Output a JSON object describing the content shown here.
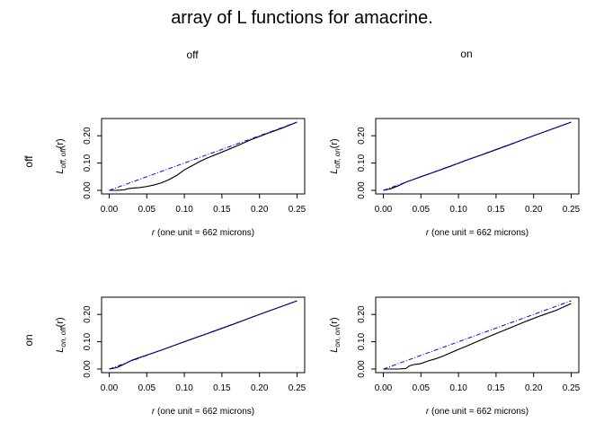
{
  "title": "array of L functions for amacrine.",
  "column_headers": [
    "off",
    "on"
  ],
  "row_headers": [
    "off",
    "on"
  ],
  "colors": {
    "observed": "#000000",
    "theoretical": "#0000ff",
    "envelope": "#ff0000",
    "frame": "#000000"
  },
  "chart_data": [
    {
      "type": "line",
      "panel": "off-off",
      "ylabel_symbol": "L",
      "ylabel_sub": "off, off",
      "ylabel_arg": "(r)",
      "xlabel_symbol": "r",
      "xlabel_rest": " (one unit = 662 microns)",
      "xlim": [
        0,
        0.25
      ],
      "ylim": [
        0,
        0.25
      ],
      "xticks": [
        "0.00",
        "0.05",
        "0.10",
        "0.15",
        "0.20",
        "0.25"
      ],
      "yticks": [
        "0.00",
        "0.10",
        "0.20"
      ],
      "series": [
        {
          "role": "theoretical",
          "x": [
            0,
            0.25
          ],
          "y": [
            0,
            0.25
          ]
        },
        {
          "role": "observed",
          "x": [
            0,
            0.01,
            0.02,
            0.025,
            0.03,
            0.04,
            0.05,
            0.06,
            0.07,
            0.08,
            0.09,
            0.1,
            0.11,
            0.12,
            0.13,
            0.15,
            0.17,
            0.19,
            0.21,
            0.23,
            0.25
          ],
          "y": [
            0,
            0,
            0.002,
            0.006,
            0.008,
            0.01,
            0.014,
            0.02,
            0.028,
            0.04,
            0.055,
            0.075,
            0.09,
            0.105,
            0.118,
            0.14,
            0.163,
            0.187,
            0.208,
            0.228,
            0.25
          ]
        }
      ]
    },
    {
      "type": "line",
      "panel": "off-on",
      "ylabel_symbol": "L",
      "ylabel_sub": "off, on",
      "ylabel_arg": "(r)",
      "xlabel_symbol": "r",
      "xlabel_rest": " (one unit = 662 microns)",
      "xlim": [
        0,
        0.25
      ],
      "ylim": [
        0,
        0.25
      ],
      "xticks": [
        "0.00",
        "0.05",
        "0.10",
        "0.15",
        "0.20",
        "0.25"
      ],
      "yticks": [
        "0.00",
        "0.10",
        "0.20"
      ],
      "series": [
        {
          "role": "theoretical",
          "x": [
            0,
            0.25
          ],
          "y": [
            0,
            0.25
          ]
        },
        {
          "role": "observed",
          "x": [
            0,
            0.01,
            0.02,
            0.03,
            0.04,
            0.05,
            0.07,
            0.09,
            0.11,
            0.13,
            0.15,
            0.17,
            0.19,
            0.21,
            0.23,
            0.25
          ],
          "y": [
            0,
            0.006,
            0.017,
            0.03,
            0.04,
            0.05,
            0.069,
            0.089,
            0.11,
            0.129,
            0.149,
            0.169,
            0.19,
            0.21,
            0.23,
            0.25
          ]
        }
      ]
    },
    {
      "type": "line",
      "panel": "on-off",
      "ylabel_symbol": "L",
      "ylabel_sub": "on, off",
      "ylabel_arg": "(r)",
      "xlabel_symbol": "r",
      "xlabel_rest": " (one unit = 662 microns)",
      "xlim": [
        0,
        0.25
      ],
      "ylim": [
        0,
        0.25
      ],
      "xticks": [
        "0.00",
        "0.05",
        "0.10",
        "0.15",
        "0.20",
        "0.25"
      ],
      "yticks": [
        "0.00",
        "0.10",
        "0.20"
      ],
      "series": [
        {
          "role": "theoretical",
          "x": [
            0,
            0.25
          ],
          "y": [
            0,
            0.25
          ]
        },
        {
          "role": "observed",
          "x": [
            0,
            0.01,
            0.02,
            0.03,
            0.04,
            0.05,
            0.07,
            0.09,
            0.11,
            0.13,
            0.15,
            0.17,
            0.19,
            0.21,
            0.23,
            0.25
          ],
          "y": [
            0,
            0.005,
            0.018,
            0.032,
            0.042,
            0.051,
            0.07,
            0.09,
            0.11,
            0.129,
            0.149,
            0.169,
            0.19,
            0.21,
            0.23,
            0.25
          ]
        }
      ]
    },
    {
      "type": "line",
      "panel": "on-on",
      "ylabel_symbol": "L",
      "ylabel_sub": "on, on",
      "ylabel_arg": "(r)",
      "xlabel_symbol": "r",
      "xlabel_rest": " (one unit = 662 microns)",
      "xlim": [
        0,
        0.25
      ],
      "ylim": [
        0,
        0.25
      ],
      "xticks": [
        "0.00",
        "0.05",
        "0.10",
        "0.15",
        "0.20",
        "0.25"
      ],
      "yticks": [
        "0.00",
        "0.10",
        "0.20"
      ],
      "series": [
        {
          "role": "theoretical",
          "x": [
            0,
            0.25
          ],
          "y": [
            0,
            0.25
          ]
        },
        {
          "role": "observed",
          "x": [
            0,
            0.01,
            0.02,
            0.03,
            0.035,
            0.04,
            0.05,
            0.06,
            0.07,
            0.08,
            0.09,
            0.1,
            0.11,
            0.12,
            0.13,
            0.15,
            0.17,
            0.19,
            0.21,
            0.23,
            0.25
          ],
          "y": [
            0,
            0,
            0,
            0.002,
            0.012,
            0.016,
            0.02,
            0.03,
            0.038,
            0.048,
            0.06,
            0.072,
            0.083,
            0.095,
            0.107,
            0.13,
            0.152,
            0.175,
            0.196,
            0.215,
            0.24
          ]
        }
      ]
    }
  ]
}
